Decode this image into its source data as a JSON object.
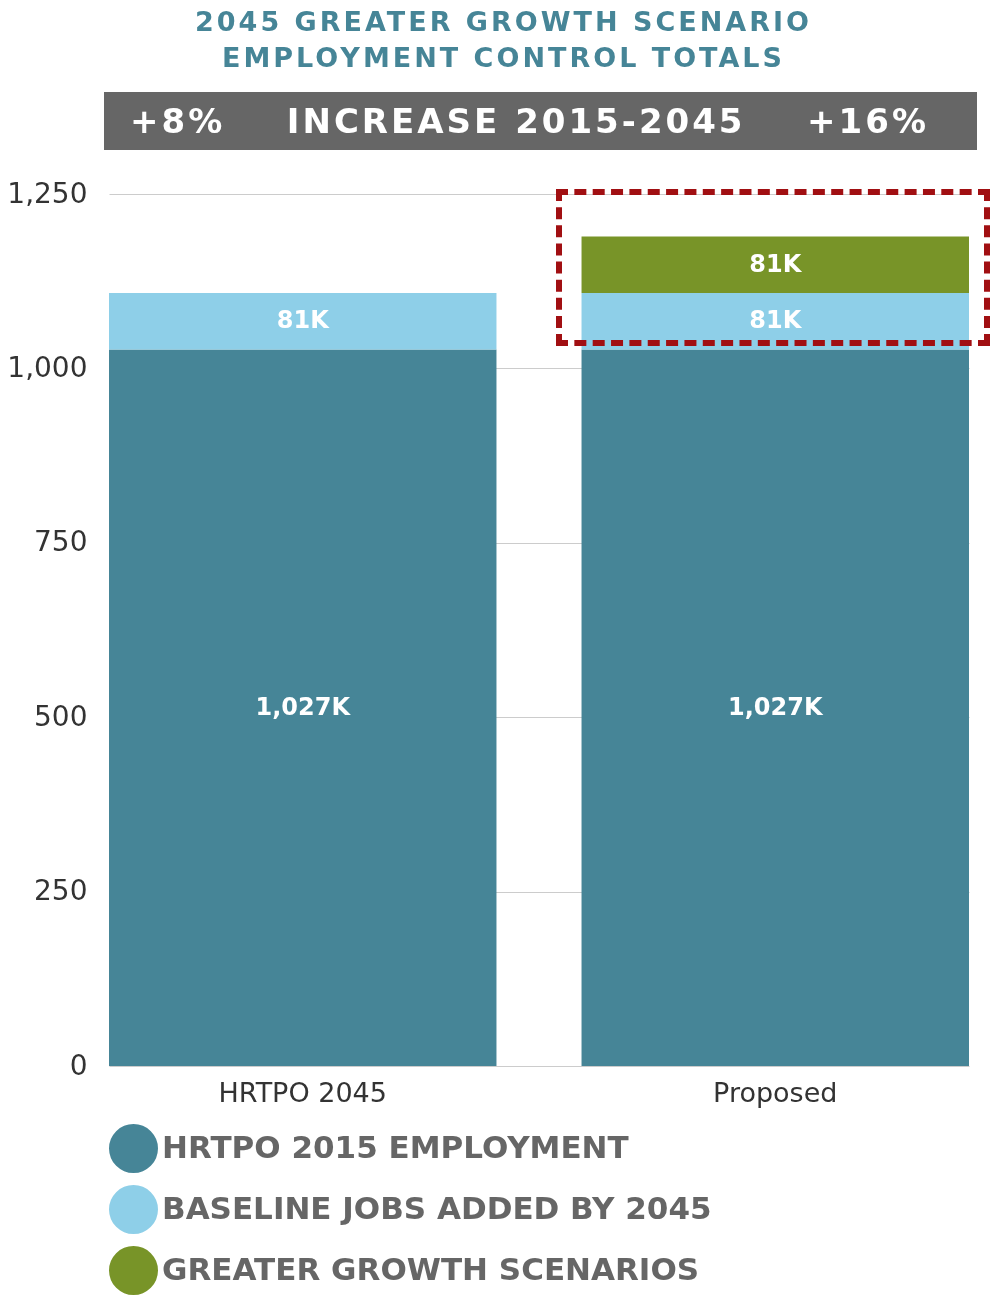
{
  "chart_data": {
    "type": "bar",
    "title": "2045 GREATER GROWTH SCENARIO\nEMPLOYMENT CONTROL TOTALS",
    "annotations": [
      "+8%",
      "INCREASE 2015-2045",
      "+16%"
    ],
    "categories": [
      "HRTPO 2045",
      "Proposed"
    ],
    "stacked": true,
    "series": [
      {
        "name": "HRTPO 2015 EMPLOYMENT",
        "color": "#468597",
        "values": [
          1027,
          1027
        ],
        "value_labels": [
          "1,027K",
          "1,027K"
        ]
      },
      {
        "name": "BASELINE JOBS ADDED BY 2045",
        "color": "#8ecfe8",
        "values": [
          81,
          81
        ],
        "value_labels": [
          "81K",
          "81K"
        ]
      },
      {
        "name": "GREATER GROWTH SCENARIOS",
        "color": "#789428",
        "values": [
          null,
          81
        ],
        "value_labels": [
          null,
          "81K"
        ]
      }
    ],
    "ylim": [
      0,
      1250
    ],
    "yticks": [
      0,
      250,
      500,
      750,
      {
        "value": 1000,
        "label": "1,000"
      },
      {
        "value": 1250,
        "label": "1,250"
      }
    ],
    "grid": "y",
    "legend": "bottom"
  }
}
